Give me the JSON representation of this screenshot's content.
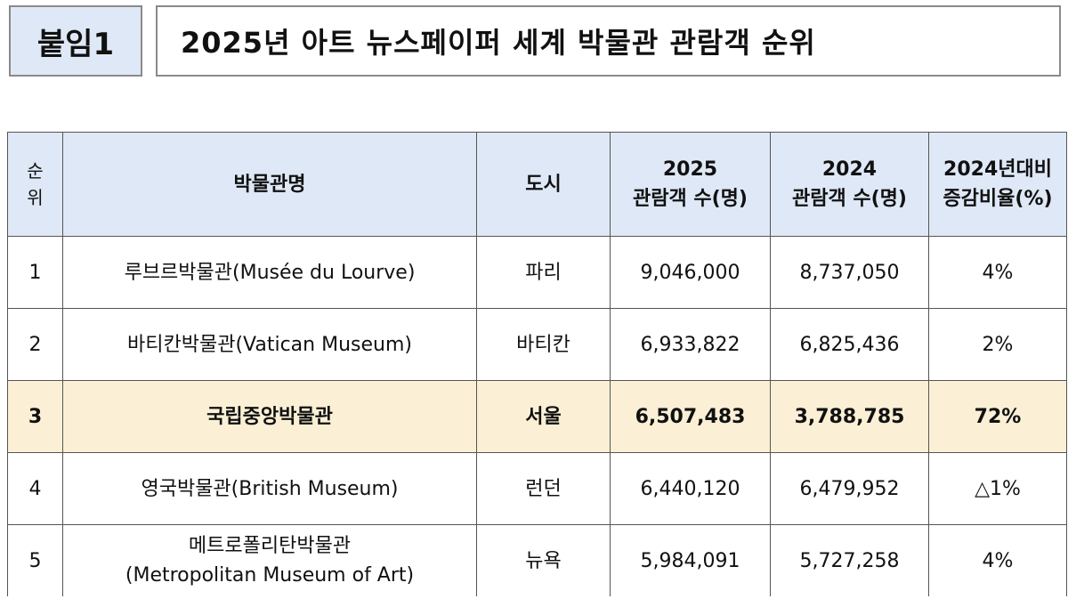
{
  "header": {
    "tag": "붙임1",
    "title": "2025년 아트 뉴스페이퍼 세계 박물관 관람객 순위"
  },
  "table": {
    "headers": {
      "rank": [
        "순",
        "위"
      ],
      "museum": "박물관명",
      "city": "도시",
      "visitors_2025": [
        "2025",
        "관람객 수(명)"
      ],
      "visitors_2024": [
        "2024",
        "관람객 수(명)"
      ],
      "change": [
        "2024년대비",
        "증감비율(%)"
      ]
    },
    "rows": [
      {
        "rank": "1",
        "museum": [
          "루브르박물관(Musée du Lourve)"
        ],
        "city": "파리",
        "visitors_2025": "9,046,000",
        "visitors_2024": "8,737,050",
        "change": "4%",
        "highlight": false
      },
      {
        "rank": "2",
        "museum": [
          "바티칸박물관(Vatican Museum)"
        ],
        "city": "바티칸",
        "visitors_2025": "6,933,822",
        "visitors_2024": "6,825,436",
        "change": "2%",
        "highlight": false
      },
      {
        "rank": "3",
        "museum": [
          "국립중앙박물관"
        ],
        "city": "서울",
        "visitors_2025": "6,507,483",
        "visitors_2024": "3,788,785",
        "change": "72%",
        "highlight": true
      },
      {
        "rank": "4",
        "museum": [
          "영국박물관(British Museum)"
        ],
        "city": "런던",
        "visitors_2025": "6,440,120",
        "visitors_2024": "6,479,952",
        "change": "△1%",
        "highlight": false
      },
      {
        "rank": "5",
        "museum": [
          "메트로폴리탄박물관",
          "(Metropolitan Museum of Art)"
        ],
        "city": "뉴욕",
        "visitors_2025": "5,984,091",
        "visitors_2024": "5,727,258",
        "change": "4%",
        "highlight": false
      }
    ]
  }
}
